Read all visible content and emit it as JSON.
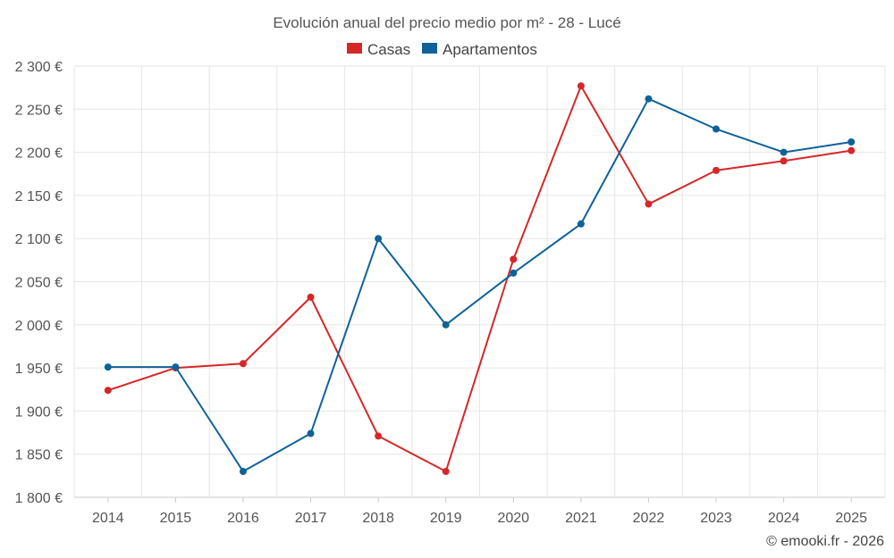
{
  "chart_data": {
    "type": "line",
    "title": "Evolución anual del precio medio por m² - 28 - Lucé",
    "categories": [
      "2014",
      "2015",
      "2016",
      "2017",
      "2018",
      "2019",
      "2020",
      "2021",
      "2022",
      "2023",
      "2024",
      "2025"
    ],
    "series": [
      {
        "name": "Casas",
        "color": "#d62728",
        "values": [
          1924,
          1950,
          1955,
          2032,
          1871,
          1830,
          2076,
          2277,
          2140,
          2179,
          2190,
          2202
        ]
      },
      {
        "name": "Apartamentos",
        "color": "#0e6299",
        "values": [
          1951,
          1951,
          1830,
          1874,
          2100,
          2000,
          2060,
          2117,
          2262,
          2227,
          2200,
          2212
        ]
      }
    ],
    "ylim": [
      1800,
      2300
    ],
    "yticks": [
      1800,
      1850,
      1900,
      1950,
      2000,
      2050,
      2100,
      2150,
      2200,
      2250,
      2300
    ],
    "ytick_labels": [
      "1 800 €",
      "1 850 €",
      "1 900 €",
      "1 950 €",
      "2 000 €",
      "2 050 €",
      "2 100 €",
      "2 150 €",
      "2 200 €",
      "2 250 €",
      "2 300 €"
    ],
    "legend_position": "top-center",
    "grid": true,
    "xlabel": "",
    "ylabel": ""
  },
  "credit": "© emooki.fr - 2026"
}
